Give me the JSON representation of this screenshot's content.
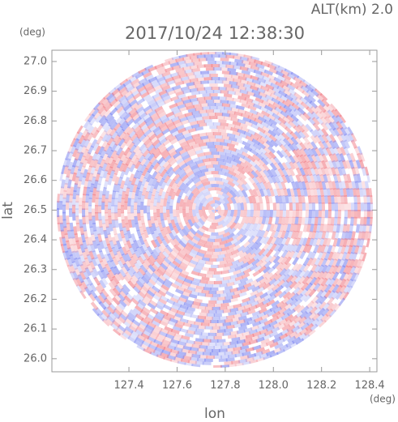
{
  "chart_data": {
    "type": "ppi",
    "title": "2017/10/24 12:38:30",
    "altitude_label": "ALT(km)  2.0",
    "x_label": "lon",
    "y_label": "lat",
    "x_unit": "(deg)",
    "y_unit": "(deg)",
    "xlim": [
      127.08,
      128.43
    ],
    "ylim": [
      25.956,
      27.038
    ],
    "xticks": [
      127.4,
      127.6,
      127.8,
      {
        "value": 128.0,
        "label": "128.0"
      },
      128.2,
      128.4
    ],
    "yticks": [
      {
        "value": 26.0,
        "label": "26.0"
      },
      26.1,
      26.2,
      26.3,
      26.4,
      26.5,
      26.6,
      26.7,
      26.8,
      26.9,
      {
        "value": 27.0,
        "label": "27.0"
      }
    ]
  }
}
